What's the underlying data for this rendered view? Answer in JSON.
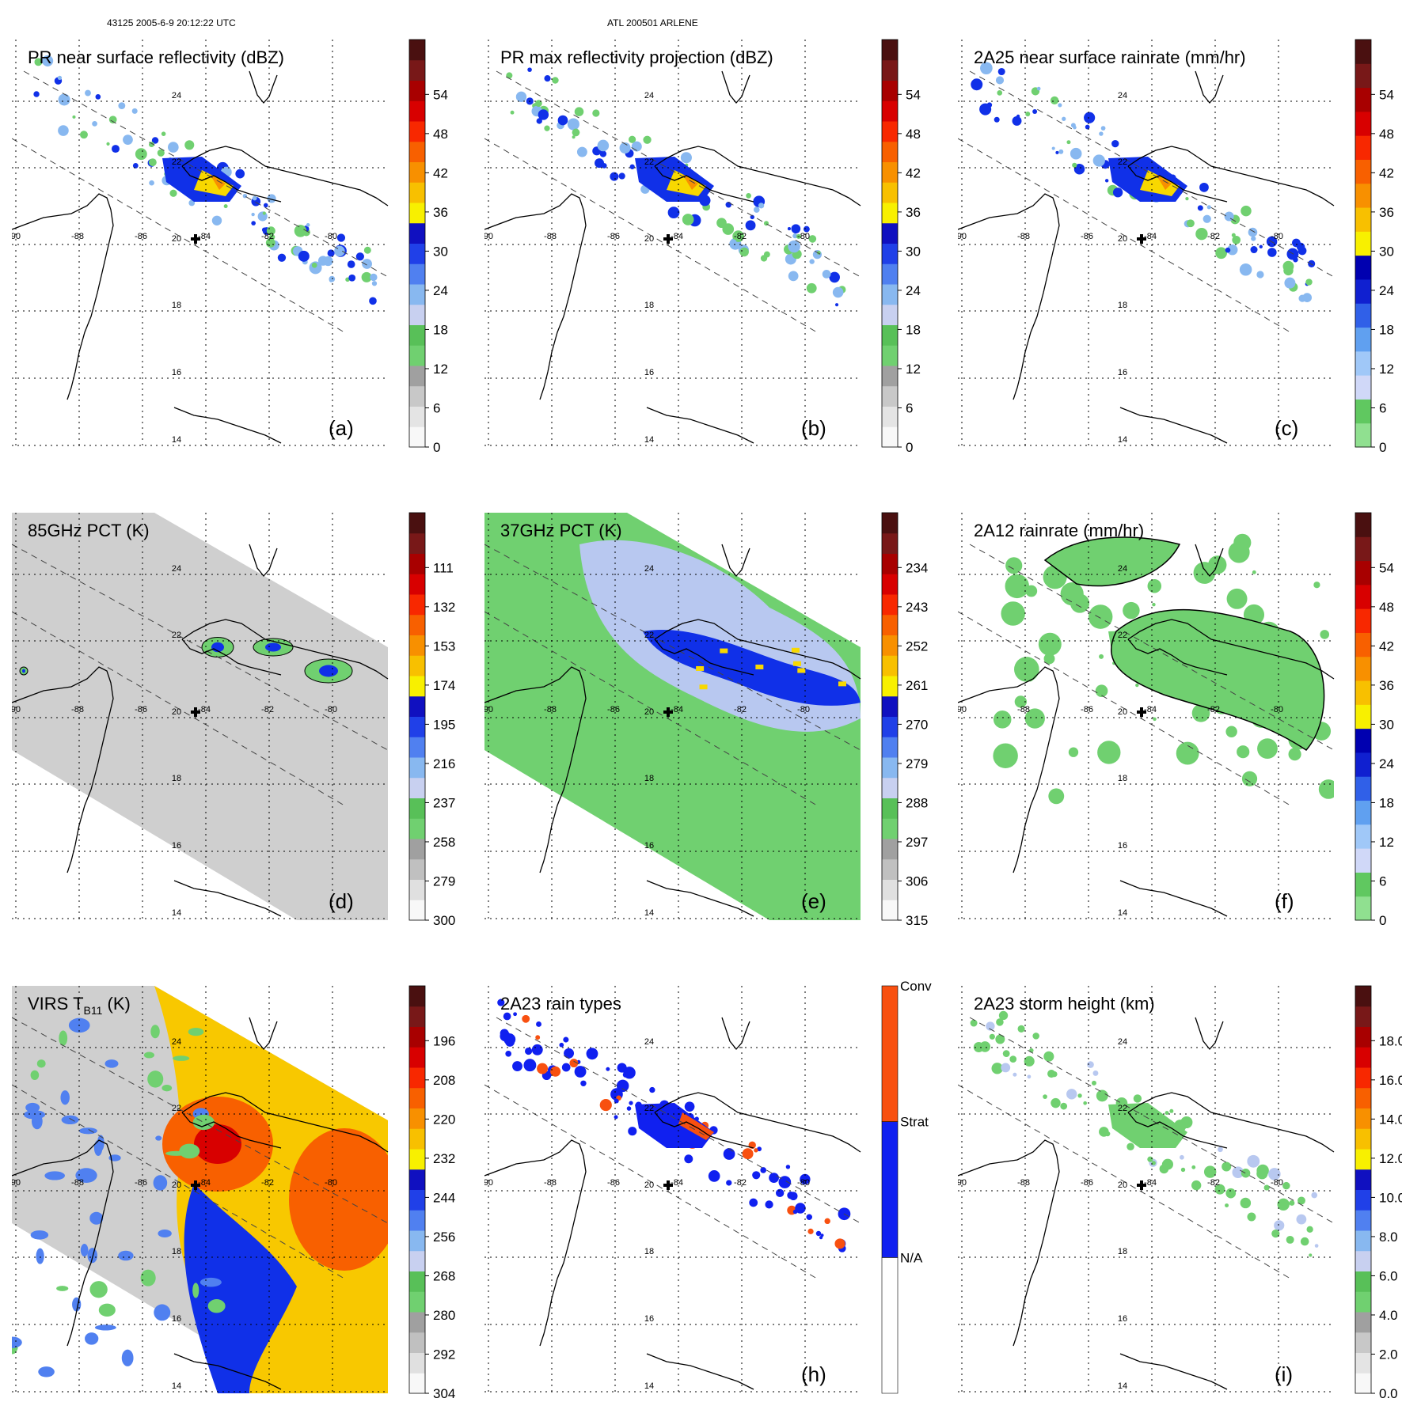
{
  "header": {
    "left": "43125 2005-6-9 20:12:22 UTC",
    "center": "ATL 200501 ARLENE"
  },
  "grid": {
    "lon_labels": [
      "-90",
      "-88",
      "-86",
      "-84",
      "-82",
      "-80"
    ],
    "lat_labels": [
      "24",
      "22",
      "20",
      "18",
      "16",
      "14"
    ]
  },
  "panels": [
    {
      "title": "PR near surface reflectivity (dBZ)",
      "label": "(a)",
      "field": "swath",
      "colorbar": {
        "ticks": [
          "0",
          "6",
          "12",
          "18",
          "24",
          "30",
          "36",
          "42",
          "48",
          "54"
        ],
        "scheme": "dbz"
      }
    },
    {
      "title": "PR max reflectivity projection (dBZ)",
      "label": "(b)",
      "field": "swath",
      "colorbar": {
        "ticks": [
          "0",
          "6",
          "12",
          "18",
          "24",
          "30",
          "36",
          "42",
          "48",
          "54"
        ],
        "scheme": "dbz"
      }
    },
    {
      "title": "2A25 near surface rainrate (mm/hr)",
      "label": "(c)",
      "field": "swath",
      "colorbar": {
        "ticks": [
          "0",
          "6",
          "12",
          "18",
          "24",
          "30",
          "36",
          "42",
          "48",
          "54"
        ],
        "scheme": "rain"
      }
    },
    {
      "title": "85GHz PCT (K)",
      "label": "(d)",
      "field": "tmi85",
      "colorbar": {
        "ticks": [
          "300",
          "279",
          "258",
          "237",
          "216",
          "195",
          "174",
          "153",
          "132",
          "111"
        ],
        "scheme": "pct"
      }
    },
    {
      "title": "37GHz PCT (K)",
      "label": "(e)",
      "field": "tmi37",
      "colorbar": {
        "ticks": [
          "315",
          "306",
          "297",
          "288",
          "279",
          "270",
          "261",
          "252",
          "243",
          "234"
        ],
        "scheme": "pct"
      }
    },
    {
      "title": "2A12 rainrate (mm/hr)",
      "label": "(f)",
      "field": "tmirain",
      "colorbar": {
        "ticks": [
          "0",
          "6",
          "12",
          "18",
          "24",
          "30",
          "36",
          "42",
          "48",
          "54"
        ],
        "scheme": "rain"
      }
    },
    {
      "title": "VIRS T",
      "title_sub": "B11",
      "title_suffix": " (K)",
      "label": "",
      "field": "virs",
      "colorbar": {
        "ticks": [
          "304",
          "292",
          "280",
          "268",
          "256",
          "244",
          "232",
          "220",
          "208",
          "196"
        ],
        "scheme": "virs"
      }
    },
    {
      "title": "2A23 rain types",
      "label": "(h)",
      "field": "raintype",
      "colorbar": {
        "ticks": [
          "N/A",
          "Strat",
          "Conv"
        ],
        "scheme": "types"
      }
    },
    {
      "title": "2A23 storm height (km)",
      "label": "(i)",
      "field": "height",
      "colorbar": {
        "ticks": [
          "0.0",
          "2.0",
          "4.0",
          "6.0",
          "8.0",
          "10.0",
          "12.0",
          "14.0",
          "16.0",
          "18.0"
        ],
        "scheme": "height"
      }
    }
  ],
  "colors": {
    "dbz": [
      "#f8f8f8",
      "#e4e4e4",
      "#c8c8c8",
      "#a0a0a0",
      "#70d070",
      "#58c058",
      "#c8d0f0",
      "#88b8f0",
      "#5080f0",
      "#2040e8",
      "#1010c0",
      "#f8f000",
      "#f8c000",
      "#f89000",
      "#f86000",
      "#f82800",
      "#d80000",
      "#a80000",
      "#781818",
      "#4a1010"
    ],
    "rain": [
      "#90e090",
      "#60c860",
      "#d0d8f8",
      "#a0c8f8",
      "#60a0f0",
      "#3060e8",
      "#1020d0",
      "#0000b0",
      "#f8f000",
      "#f8c000",
      "#f89000",
      "#f86000",
      "#f82800",
      "#d80000",
      "#a80000",
      "#781818",
      "#4a1010"
    ],
    "pct": [
      "#f8f8f8",
      "#e0e0e0",
      "#c0c0c0",
      "#a0a0a0",
      "#70d070",
      "#58c058",
      "#c8d0f0",
      "#88b8f0",
      "#5080f0",
      "#2040e8",
      "#1010c0",
      "#f8f000",
      "#f8c000",
      "#f89000",
      "#f86000",
      "#f82800",
      "#d80000",
      "#a80000",
      "#781818",
      "#4a1010"
    ],
    "types": [
      "#ffffff",
      "#1020f0",
      "#f85010"
    ],
    "field_blue": "#1030e8",
    "field_green": "#70d070",
    "field_yellow": "#f8d800",
    "field_orange": "#f89000",
    "field_red": "#e02000",
    "field_lightblue": "#b8c8f0",
    "field_gray": "#cfcfcf"
  }
}
